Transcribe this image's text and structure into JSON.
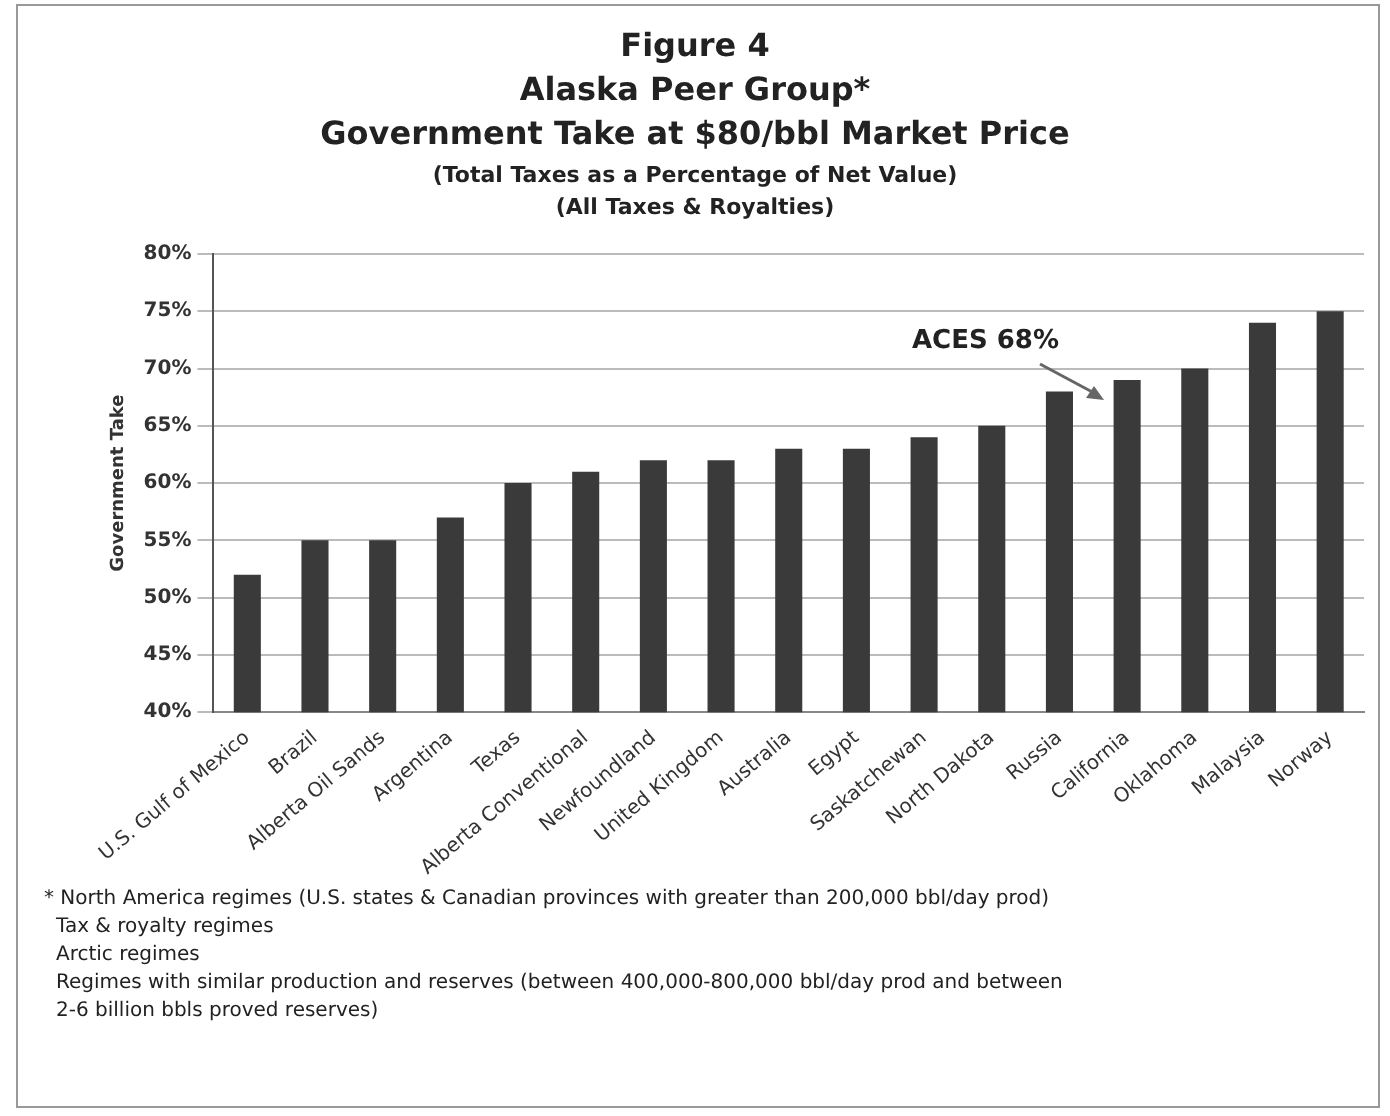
{
  "chart_data": {
    "type": "bar",
    "title": "Figure 4\nAlaska Peer Group*\nGovernment Take at $80/bbl Market Price",
    "subtitle": "(Total Taxes as a Percentage of Net Value)\n(All Taxes & Royalties)",
    "ylabel": "Government Take",
    "categories": [
      "U.S. Gulf of Mexico",
      "Brazil",
      "Alberta Oil Sands",
      "Argentina",
      "Texas",
      "Alberta Conventional",
      "Newfoundland",
      "United Kingdom",
      "Australia",
      "Egypt",
      "Saskatchewan",
      "North Dakota",
      "Russia",
      "California",
      "Oklahoma",
      "Malaysia",
      "Norway"
    ],
    "values": [
      52,
      55,
      55,
      57,
      60,
      61,
      62,
      62,
      63,
      63,
      64,
      65,
      68,
      69,
      70,
      74,
      75
    ],
    "color": "#3a3a3a",
    "ylim": [
      40,
      80
    ],
    "yticks": [
      {
        "value": 40,
        "label": "40%"
      },
      {
        "value": 45,
        "label": "45%"
      },
      {
        "value": 50,
        "label": "50%"
      },
      {
        "value": 55,
        "label": "55%"
      },
      {
        "value": 60,
        "label": "60%"
      },
      {
        "value": 65,
        "label": "65%"
      },
      {
        "value": 70,
        "label": "70%"
      },
      {
        "value": 75,
        "label": "75%"
      },
      {
        "value": 80,
        "label": "80%"
      }
    ],
    "grid": "y",
    "annotations": [
      "ACES 68%",
      "* North America regimes (U.S. states & Canadian provinces with greater than 200,000 bbl/day prod)",
      "Tax & royalty regimes",
      "Arctic regimes",
      "Regimes with similar production and reserves (between 400,000-800,000 bbl/day prod and between\n2-6 billion bbls proved reserves)"
    ]
  }
}
